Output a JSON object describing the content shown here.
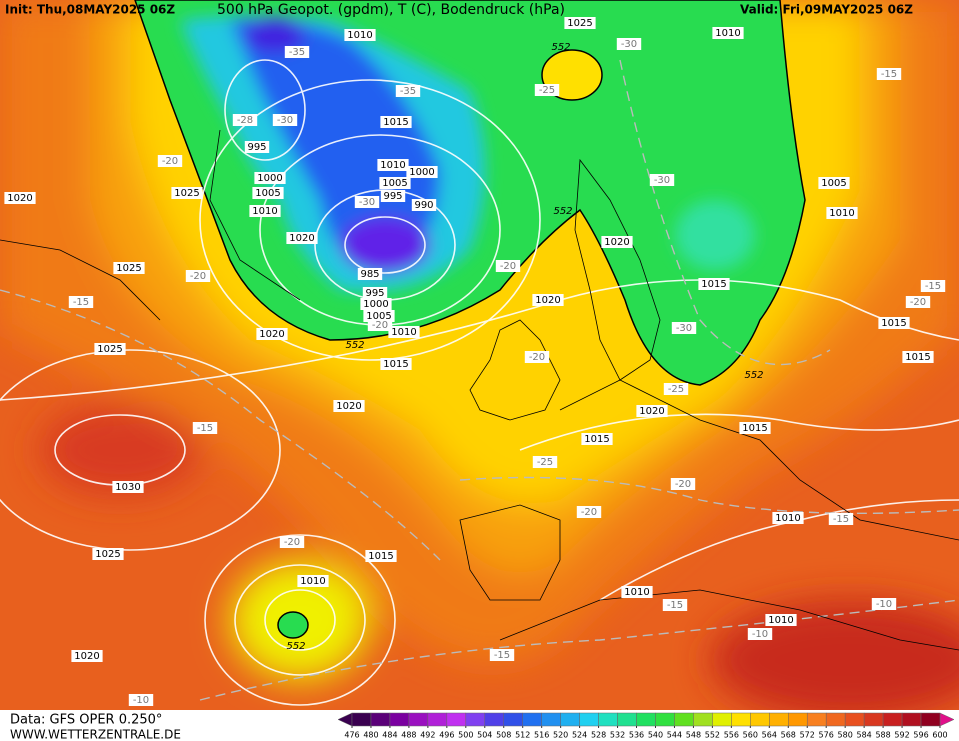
{
  "header": {
    "init": "Init: Thu,08MAY2025 06Z",
    "title": "500 hPa Geopot. (gpdm), T (C), Bodendruck (hPa)",
    "valid": "Valid: Fri,09MAY2025 06Z"
  },
  "footer": {
    "data": "Data: GFS OPER 0.250°",
    "site": "WWW.WETTERZENTRALE.DE"
  },
  "colorbar": {
    "ticks": [
      476,
      480,
      484,
      488,
      492,
      496,
      500,
      504,
      508,
      512,
      516,
      520,
      524,
      528,
      532,
      536,
      540,
      544,
      548,
      552,
      556,
      560,
      564,
      568,
      572,
      576,
      580,
      584,
      588,
      592,
      596,
      600
    ],
    "colors": [
      "#3a0050",
      "#5a0078",
      "#7a00a0",
      "#9a10c0",
      "#b020d8",
      "#c030f0",
      "#8040f0",
      "#5040e8",
      "#3050e8",
      "#2070f0",
      "#2090f0",
      "#20b0f0",
      "#20d0f0",
      "#20e0c0",
      "#20e090",
      "#20e060",
      "#30e040",
      "#60e020",
      "#a0e020",
      "#e0f000",
      "#ffe000",
      "#ffc800",
      "#ffb000",
      "#ff9800",
      "#f88020",
      "#f06820",
      "#e85020",
      "#d83820",
      "#c82020",
      "#b01020",
      "#900020"
    ]
  },
  "isobar_labels": [
    "1010",
    "1025",
    "1010",
    "1015",
    "995",
    "1000",
    "1005",
    "1010",
    "1025",
    "1020",
    "1010",
    "1000",
    "1005",
    "995",
    "990",
    "1020",
    "985",
    "995",
    "1000",
    "1005",
    "1010",
    "1020",
    "1015",
    "1020",
    "1020",
    "1015",
    "1005",
    "1010",
    "1015",
    "1015",
    "1025",
    "1025",
    "1020",
    "1020",
    "1015",
    "1015",
    "1030",
    "1025",
    "1015",
    "1010",
    "1010",
    "1010",
    "1010",
    "1020"
  ],
  "temperature_labels": [
    "-35",
    "-35",
    "-30",
    "-25",
    "-15",
    "-30",
    "-28",
    "-20",
    "-30",
    "-30",
    "-20",
    "-15",
    "-20",
    "-15",
    "-20",
    "-30",
    "-20",
    "-20",
    "-25",
    "-15",
    "-25",
    "-20",
    "-20",
    "-15",
    "-20",
    "-15",
    "-10",
    "-10",
    "-15",
    "-10"
  ],
  "geopotential_labels": [
    "552",
    "552",
    "552",
    "552",
    "552"
  ]
}
